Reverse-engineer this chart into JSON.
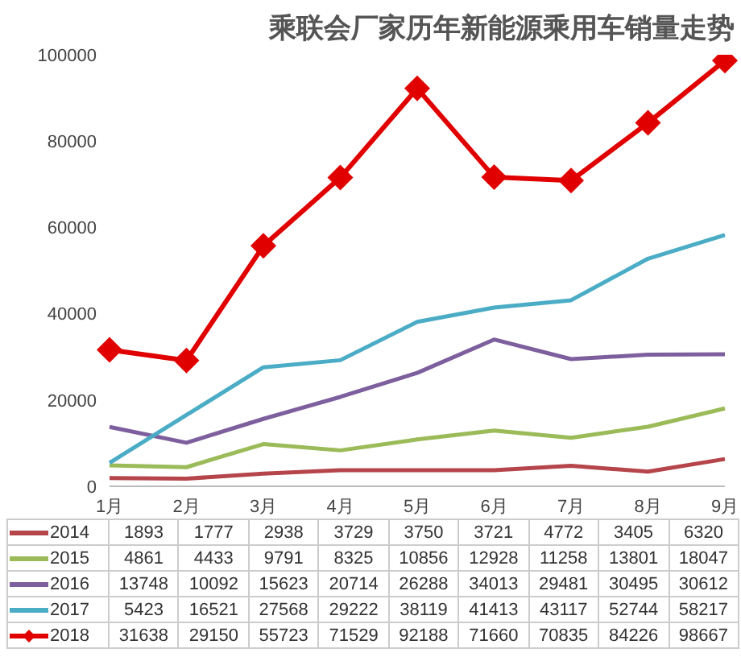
{
  "chart_data": {
    "type": "line",
    "title": "乘联会厂家历年新能源乘用车销量走势",
    "categories": [
      "1月",
      "2月",
      "3月",
      "4月",
      "5月",
      "6月",
      "7月",
      "8月",
      "9月"
    ],
    "series": [
      {
        "name": "2014",
        "color": "#b5454b",
        "marker": "none",
        "values": [
          1893,
          1777,
          2938,
          3729,
          3750,
          3721,
          4772,
          3405,
          6320
        ]
      },
      {
        "name": "2015",
        "color": "#9bbb59",
        "marker": "none",
        "values": [
          4861,
          4433,
          9791,
          8325,
          10856,
          12928,
          11258,
          13801,
          18047
        ]
      },
      {
        "name": "2016",
        "color": "#7e5f9e",
        "marker": "none",
        "values": [
          13748,
          10092,
          15623,
          20714,
          26288,
          34013,
          29481,
          30495,
          30612
        ]
      },
      {
        "name": "2017",
        "color": "#4bacc6",
        "marker": "none",
        "values": [
          5423,
          16521,
          27568,
          29222,
          38119,
          41413,
          43117,
          52744,
          58217
        ]
      },
      {
        "name": "2018",
        "color": "#e00000",
        "marker": "diamond",
        "values": [
          31638,
          29150,
          55723,
          71529,
          92188,
          71660,
          70835,
          84226,
          98667
        ]
      }
    ],
    "ylim": [
      0,
      100000
    ],
    "yticks": [
      0,
      20000,
      40000,
      60000,
      80000,
      100000
    ],
    "legend": "bottom",
    "data_labels": true
  }
}
